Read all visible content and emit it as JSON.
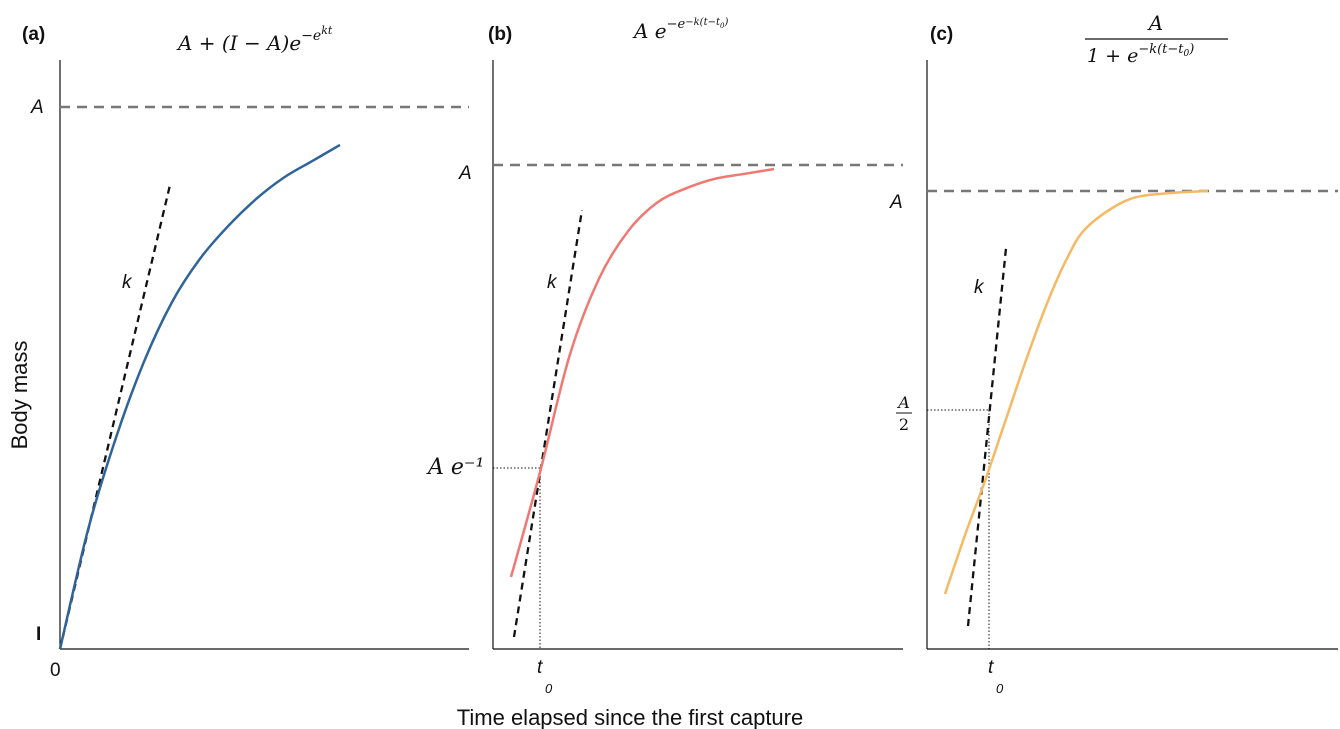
{
  "chart_data": {
    "xlabel": "Time elapsed since the first capture",
    "ylabel": "Body mass",
    "panels": [
      {
        "type": "line",
        "label": "(a)",
        "equation": "A + (I − A)e^(−e^(kt))",
        "color": "#2e6499",
        "y_labels": {
          "asymptote": "A",
          "initial": "I"
        },
        "x_labels": {
          "origin": "0"
        },
        "slope_label": "k",
        "series": [
          {
            "x": [
              0,
              1,
              2,
              3,
              4,
              5,
              6,
              7,
              8,
              9,
              10
            ],
            "y": [
              0.0,
              0.22,
              0.39,
              0.53,
              0.64,
              0.72,
              0.78,
              0.83,
              0.87,
              0.9,
              0.93
            ]
          }
        ]
      },
      {
        "type": "line",
        "label": "(b)",
        "equation": "A e^(−e^(−k(t−t₀)))",
        "color": "#f07872",
        "y_labels": {
          "asymptote": "A",
          "inflection": "A e⁻¹"
        },
        "x_labels": {
          "inflection": "t",
          "inflection_sub": "0"
        },
        "slope_label": "k",
        "series": [
          {
            "x": [
              -1,
              0,
              1,
              2,
              3,
              4,
              5,
              6,
              7,
              8
            ],
            "y": [
              0.15,
              0.37,
              0.61,
              0.77,
              0.87,
              0.93,
              0.96,
              0.98,
              0.99,
              1.0
            ]
          }
        ]
      },
      {
        "type": "line",
        "label": "(c)",
        "equation_numerator": "A",
        "equation_denominator": "1 + e^(−k(t−t₀))",
        "color": "#f5b963",
        "y_labels": {
          "asymptote": "A",
          "inflection_num": "A",
          "inflection_den": "2"
        },
        "x_labels": {
          "inflection": "t",
          "inflection_sub": "0"
        },
        "slope_label": "k",
        "series": [
          {
            "x": [
              -1.5,
              -1,
              -0.5,
              0,
              0.5,
              1,
              1.5,
              2,
              3,
              4,
              5
            ],
            "y": [
              0.12,
              0.25,
              0.37,
              0.5,
              0.63,
              0.75,
              0.85,
              0.92,
              0.98,
              0.995,
              1.0
            ]
          }
        ]
      }
    ]
  }
}
